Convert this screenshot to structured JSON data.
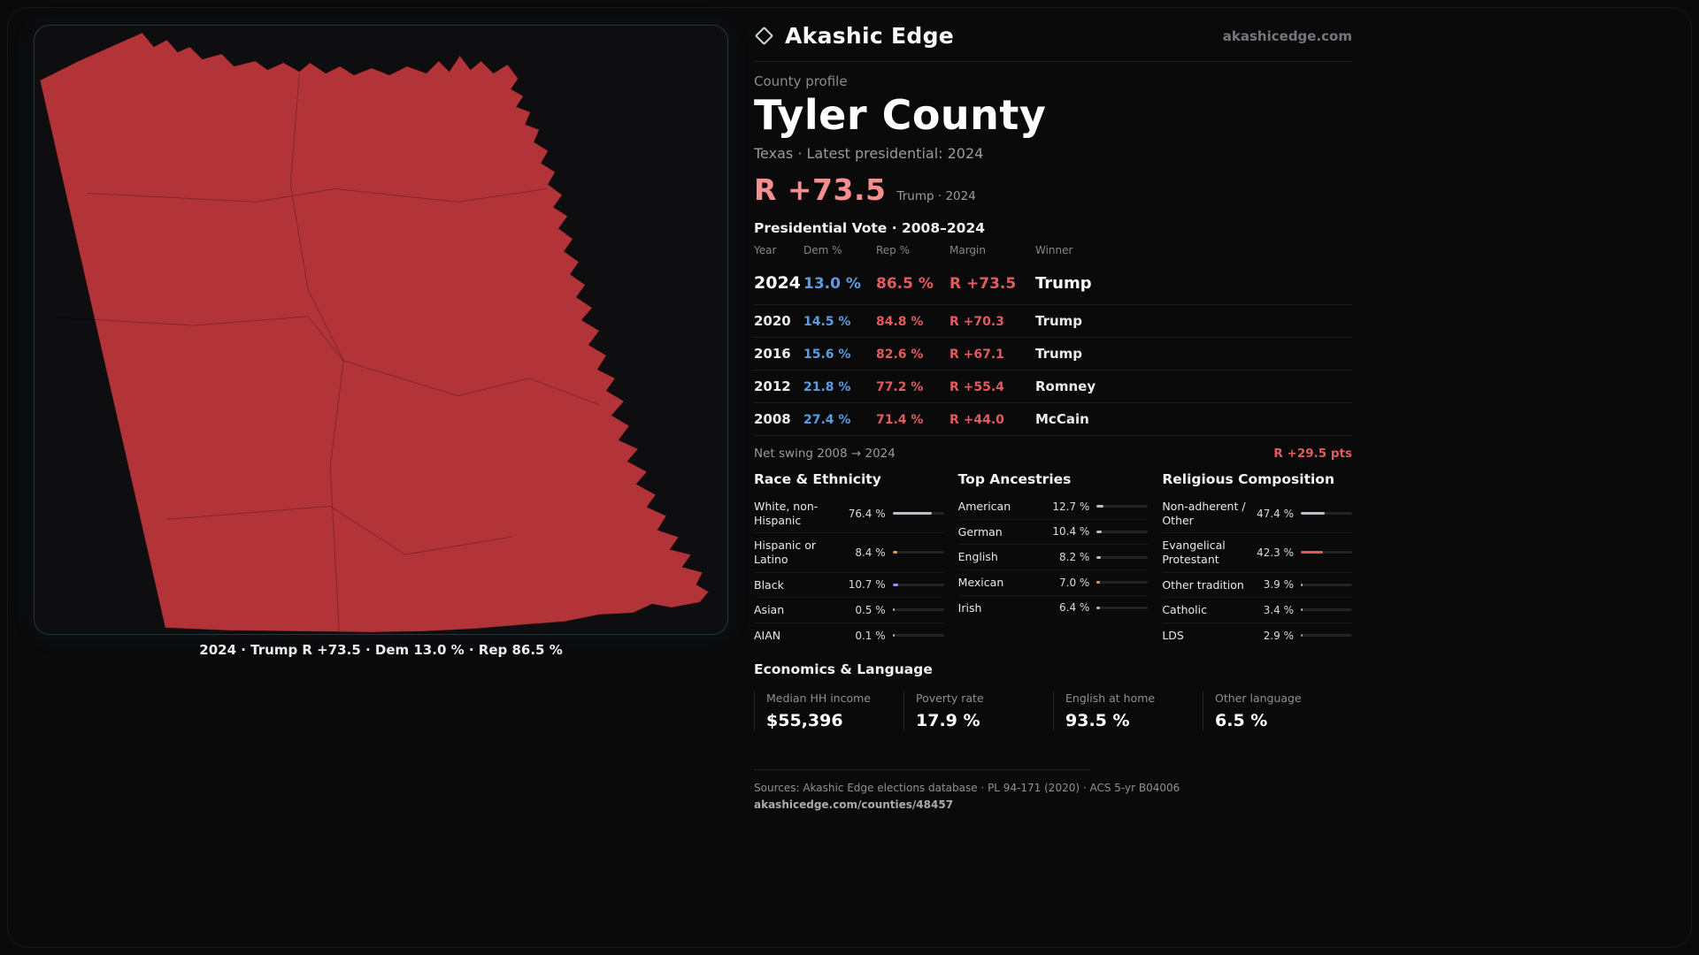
{
  "brand": {
    "name": "Akashic Edge",
    "domain": "akashicedge.com"
  },
  "profile": {
    "kicker": "County profile",
    "title": "Tyler County",
    "subtitle": "Texas · Latest presidential: 2024",
    "headline_margin": "R +73.5",
    "headline_note": "Trump · 2024"
  },
  "map": {
    "caption": "2024 · Trump R +73.5 · Dem 13.0 % · Rep 86.5 %",
    "fill_color": "#b23338"
  },
  "vote_table": {
    "title": "Presidential Vote · 2008–2024",
    "columns": [
      "Year",
      "Dem %",
      "Rep %",
      "Margin",
      "Winner"
    ],
    "rows": [
      {
        "year": "2024",
        "dem": "13.0 %",
        "rep": "86.5 %",
        "margin": "R +73.5",
        "winner": "Trump"
      },
      {
        "year": "2020",
        "dem": "14.5 %",
        "rep": "84.8 %",
        "margin": "R +70.3",
        "winner": "Trump"
      },
      {
        "year": "2016",
        "dem": "15.6 %",
        "rep": "82.6 %",
        "margin": "R +67.1",
        "winner": "Trump"
      },
      {
        "year": "2012",
        "dem": "21.8 %",
        "rep": "77.2 %",
        "margin": "R +55.4",
        "winner": "Romney"
      },
      {
        "year": "2008",
        "dem": "27.4 %",
        "rep": "71.4 %",
        "margin": "R +44.0",
        "winner": "McCain"
      }
    ]
  },
  "net_swing": {
    "label": "Net swing 2008 → 2024",
    "value": "R +29.5 pts"
  },
  "demographics": [
    {
      "title": "Race & Ethnicity",
      "rows": [
        {
          "label": "White, non-Hispanic",
          "value": "76.4 %",
          "pct": 76.4,
          "color": "#b9bec7"
        },
        {
          "label": "Hispanic or Latino",
          "value": "8.4 %",
          "pct": 8.4,
          "color": "#e5a23c"
        },
        {
          "label": "Black",
          "value": "10.7 %",
          "pct": 10.7,
          "color": "#9f8df2"
        },
        {
          "label": "Asian",
          "value": "0.5 %",
          "pct": 0.5,
          "color": "#b9bec7"
        },
        {
          "label": "AIAN",
          "value": "0.1 %",
          "pct": 0.1,
          "color": "#b9bec7"
        }
      ]
    },
    {
      "title": "Top Ancestries",
      "rows": [
        {
          "label": "American",
          "value": "12.7 %",
          "pct": 12.7,
          "color": "#b9bec7"
        },
        {
          "label": "German",
          "value": "10.4 %",
          "pct": 10.4,
          "color": "#b9bec7"
        },
        {
          "label": "English",
          "value": "8.2 %",
          "pct": 8.2,
          "color": "#b9bec7"
        },
        {
          "label": "Mexican",
          "value": "7.0 %",
          "pct": 7.0,
          "color": "#e5a23c"
        },
        {
          "label": "Irish",
          "value": "6.4 %",
          "pct": 6.4,
          "color": "#b9bec7"
        }
      ]
    },
    {
      "title": "Religious Composition",
      "rows": [
        {
          "label": "Non-adherent / Other",
          "value": "47.4 %",
          "pct": 47.4,
          "color": "#b9bec7"
        },
        {
          "label": "Evangelical Protestant",
          "value": "42.3 %",
          "pct": 42.3,
          "color": "#e0595e"
        },
        {
          "label": "Other tradition",
          "value": "3.9 %",
          "pct": 3.9,
          "color": "#b9bec7"
        },
        {
          "label": "Catholic",
          "value": "3.4 %",
          "pct": 3.4,
          "color": "#b9bec7"
        },
        {
          "label": "LDS",
          "value": "2.9 %",
          "pct": 2.9,
          "color": "#3ec9c2"
        }
      ]
    }
  ],
  "economics": {
    "title": "Economics & Language",
    "stats": [
      {
        "label": "Median HH income",
        "value": "$55,396"
      },
      {
        "label": "Poverty rate",
        "value": "17.9 %"
      },
      {
        "label": "English at home",
        "value": "93.5 %"
      },
      {
        "label": "Other language",
        "value": "6.5 %"
      }
    ]
  },
  "footer": {
    "sources": "Sources: Akashic Edge elections database · PL 94-171 (2020) · ACS 5-yr B04006",
    "permalink": "akashicedge.com/counties/48457"
  }
}
